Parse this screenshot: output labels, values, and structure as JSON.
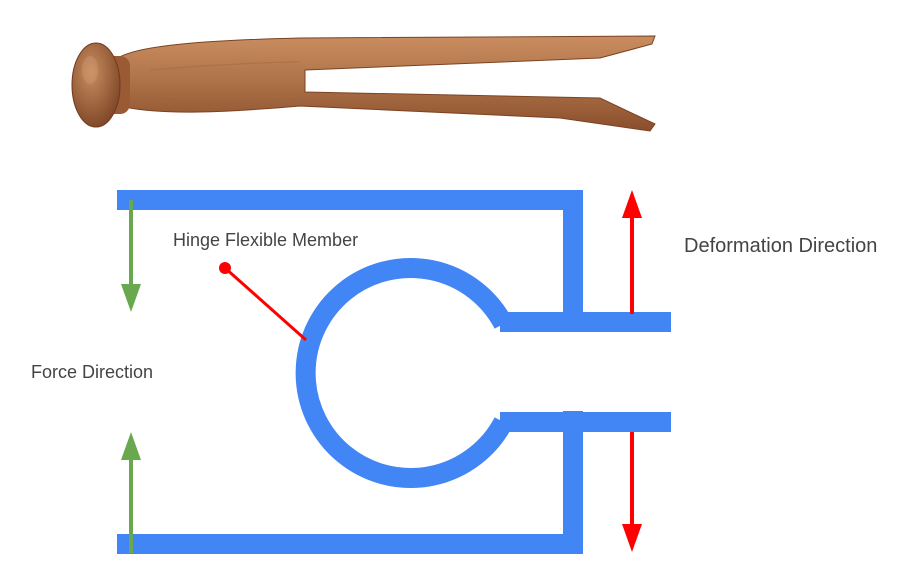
{
  "labels": {
    "hinge": "Hinge Flexible Member",
    "deformation": "Deformation Direction",
    "force": "Force Direction"
  },
  "colors": {
    "structure": "#4285f4",
    "force_arrow": "#6aa84f",
    "deformation_arrow": "#ff0000",
    "leader_line": "#ff0000",
    "wood_dark": "#8a4e2c",
    "wood_mid": "#b0744a",
    "wood_light": "#c98d60",
    "text": "#444444"
  },
  "image": {
    "subject": "wooden clothespin photo"
  }
}
